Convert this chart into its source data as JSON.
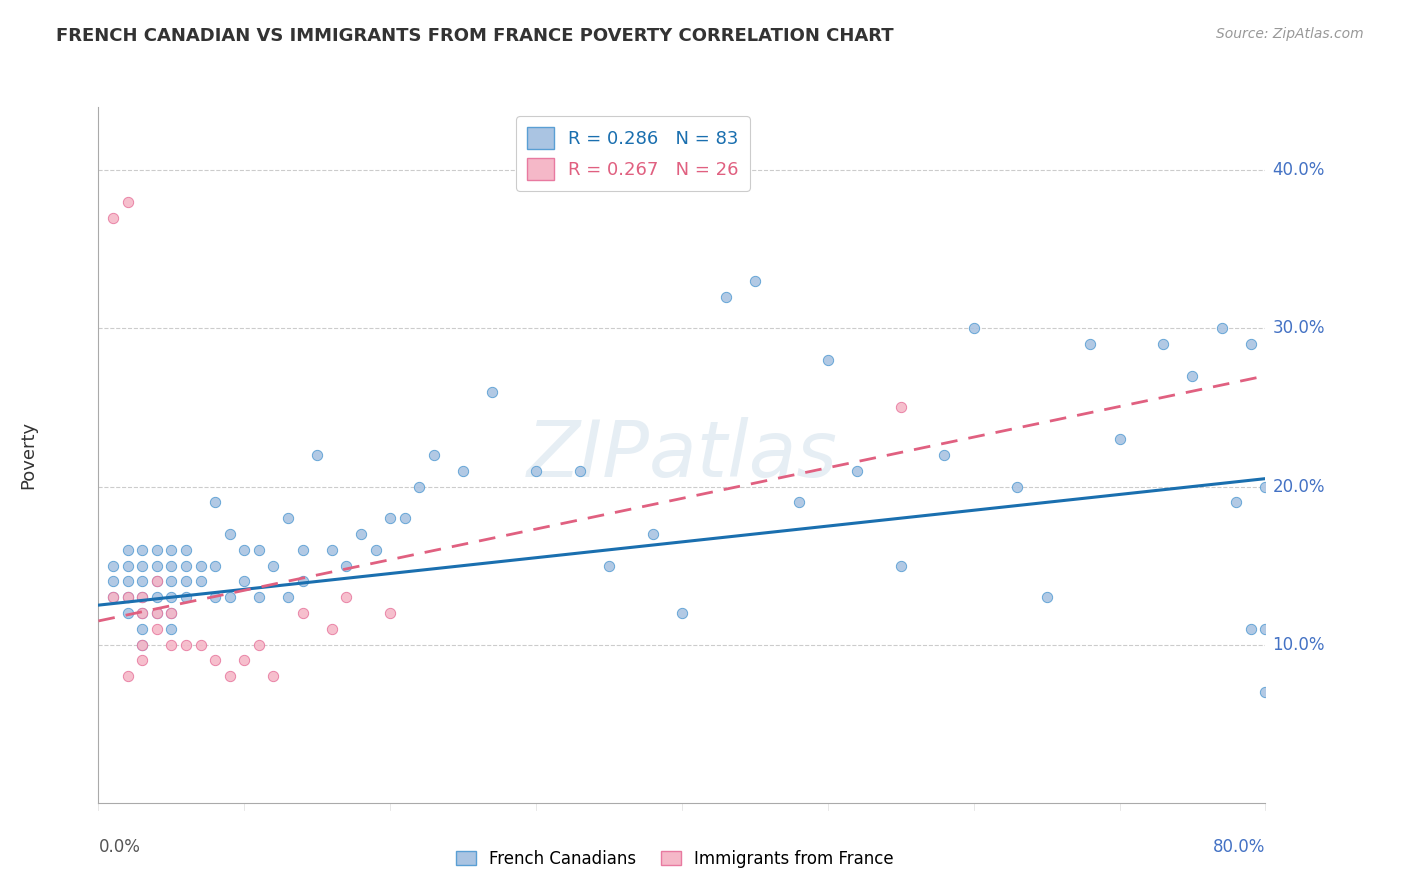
{
  "title": "FRENCH CANADIAN VS IMMIGRANTS FROM FRANCE POVERTY CORRELATION CHART",
  "source": "Source: ZipAtlas.com",
  "ylabel": "Poverty",
  "xlim": [
    0.0,
    0.8
  ],
  "ylim": [
    0.0,
    0.44
  ],
  "blue_R": 0.286,
  "blue_N": 83,
  "pink_R": 0.267,
  "pink_N": 26,
  "blue_color": "#aac4e2",
  "pink_color": "#f5b8c8",
  "blue_edge_color": "#5a9fd4",
  "pink_edge_color": "#e87aa0",
  "blue_line_color": "#1a6faf",
  "pink_line_color": "#e06080",
  "watermark": "ZIPatlas",
  "blue_scatter_x": [
    0.01,
    0.01,
    0.01,
    0.02,
    0.02,
    0.02,
    0.02,
    0.02,
    0.03,
    0.03,
    0.03,
    0.03,
    0.03,
    0.03,
    0.03,
    0.04,
    0.04,
    0.04,
    0.04,
    0.04,
    0.05,
    0.05,
    0.05,
    0.05,
    0.05,
    0.05,
    0.06,
    0.06,
    0.06,
    0.06,
    0.07,
    0.07,
    0.08,
    0.08,
    0.08,
    0.09,
    0.09,
    0.1,
    0.1,
    0.11,
    0.11,
    0.12,
    0.13,
    0.13,
    0.14,
    0.14,
    0.15,
    0.16,
    0.17,
    0.18,
    0.19,
    0.2,
    0.21,
    0.22,
    0.23,
    0.25,
    0.27,
    0.3,
    0.33,
    0.35,
    0.38,
    0.4,
    0.43,
    0.45,
    0.48,
    0.5,
    0.52,
    0.55,
    0.58,
    0.6,
    0.63,
    0.65,
    0.68,
    0.7,
    0.73,
    0.75,
    0.77,
    0.78,
    0.79,
    0.79,
    0.8,
    0.8,
    0.8
  ],
  "blue_scatter_y": [
    0.13,
    0.14,
    0.15,
    0.12,
    0.13,
    0.14,
    0.15,
    0.16,
    0.1,
    0.11,
    0.12,
    0.13,
    0.14,
    0.15,
    0.16,
    0.12,
    0.13,
    0.14,
    0.15,
    0.16,
    0.11,
    0.12,
    0.13,
    0.14,
    0.15,
    0.16,
    0.13,
    0.14,
    0.15,
    0.16,
    0.14,
    0.15,
    0.13,
    0.15,
    0.19,
    0.13,
    0.17,
    0.14,
    0.16,
    0.13,
    0.16,
    0.15,
    0.13,
    0.18,
    0.14,
    0.16,
    0.22,
    0.16,
    0.15,
    0.17,
    0.16,
    0.18,
    0.18,
    0.2,
    0.22,
    0.21,
    0.26,
    0.21,
    0.21,
    0.15,
    0.17,
    0.12,
    0.32,
    0.33,
    0.19,
    0.28,
    0.21,
    0.15,
    0.22,
    0.3,
    0.2,
    0.13,
    0.29,
    0.23,
    0.29,
    0.27,
    0.3,
    0.19,
    0.11,
    0.29,
    0.2,
    0.11,
    0.07
  ],
  "pink_scatter_x": [
    0.01,
    0.01,
    0.02,
    0.02,
    0.02,
    0.03,
    0.03,
    0.03,
    0.03,
    0.04,
    0.04,
    0.04,
    0.05,
    0.05,
    0.06,
    0.07,
    0.08,
    0.09,
    0.1,
    0.11,
    0.12,
    0.14,
    0.16,
    0.17,
    0.2,
    0.55
  ],
  "pink_scatter_y": [
    0.13,
    0.37,
    0.38,
    0.13,
    0.08,
    0.12,
    0.09,
    0.1,
    0.13,
    0.11,
    0.14,
    0.12,
    0.1,
    0.12,
    0.1,
    0.1,
    0.09,
    0.08,
    0.09,
    0.1,
    0.08,
    0.12,
    0.11,
    0.13,
    0.12,
    0.25
  ],
  "blue_scatter_size": 55,
  "pink_scatter_size": 55,
  "blue_line_x0": 0.0,
  "blue_line_x1": 0.8,
  "blue_line_y0": 0.125,
  "blue_line_y1": 0.205,
  "pink_line_x0": 0.0,
  "pink_line_x1": 0.8,
  "pink_line_y0": 0.115,
  "pink_line_y1": 0.27,
  "ytick_vals": [
    0.1,
    0.2,
    0.3,
    0.4
  ],
  "ytick_labels": [
    "10.0%",
    "20.0%",
    "30.0%",
    "40.0%"
  ]
}
